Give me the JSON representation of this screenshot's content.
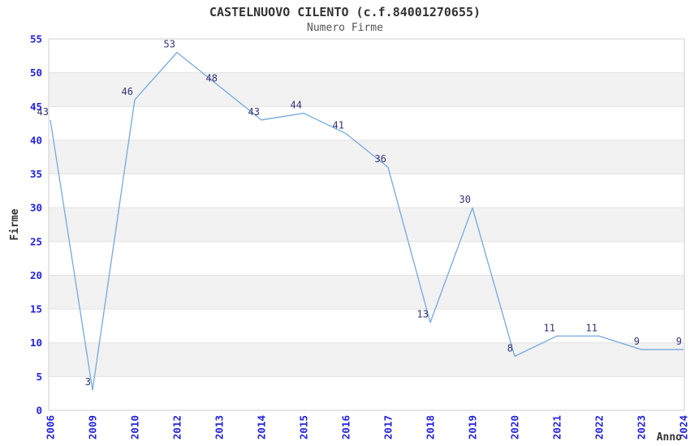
{
  "header": {
    "title": "CASTELNUOVO CILENTO (c.f.84001270655)",
    "subtitle": "Numero Firme"
  },
  "chart_data": {
    "type": "line",
    "title": "CASTELNUOVO CILENTO (c.f.84001270655)",
    "subtitle": "Numero Firme",
    "xlabel": "Anno",
    "ylabel": "Firme",
    "categories": [
      "2006",
      "2009",
      "2010",
      "2012",
      "2013",
      "2014",
      "2015",
      "2016",
      "2017",
      "2018",
      "2019",
      "2020",
      "2021",
      "2022",
      "2023",
      "2024"
    ],
    "series": [
      {
        "name": "Numero Firme",
        "values": [
          43,
          3,
          46,
          53,
          48,
          43,
          44,
          41,
          36,
          13,
          30,
          8,
          11,
          11,
          9,
          9
        ]
      }
    ],
    "ylim": [
      0,
      55
    ],
    "ytick_step": 5,
    "grid": "horizontal",
    "alternating_bands": true,
    "legend_position": "none",
    "x_tick_rotation": 90,
    "data_labels_visible": true,
    "colors": {
      "line": "#74a9dc",
      "tick_label": "#2222dd",
      "data_label": "#333377",
      "band_fill": "#f2f2f2",
      "gridline": "#e2e2e2",
      "plot_border": "#cfcfcf",
      "title": "#333333",
      "subtitle": "#555555",
      "axis_title": "#333333",
      "background": "#ffffff"
    }
  }
}
